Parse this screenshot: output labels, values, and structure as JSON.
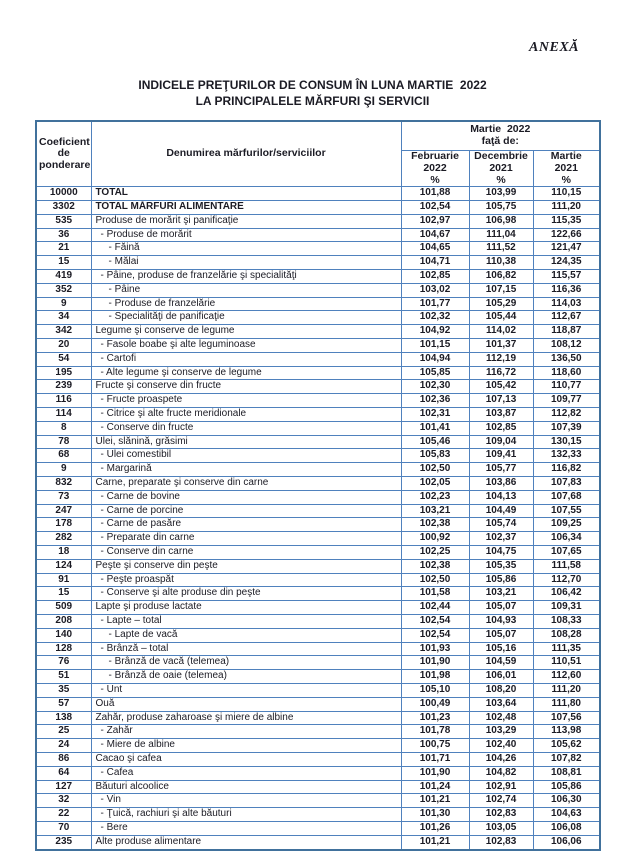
{
  "colors": {
    "table_border_inner": "#4f81bd",
    "table_border_outer": "#41719c",
    "text": "#1b1b24",
    "background": "#ffffff"
  },
  "page": {
    "annex_label": "ANEXĂ",
    "title_line1": "INDICELE PREŢURILOR DE CONSUM ÎN LUNA MARTIE  2022",
    "title_line2": "LA PRINCIPALELE MĂRFURI ŞI SERVICII"
  },
  "table": {
    "headers": {
      "coefficient": {
        "l1": "Coeficient",
        "l2": "de",
        "l3": "ponderare"
      },
      "name": "Denumirea mărfurilor/serviciilor",
      "group": {
        "l1": "Martie  2022",
        "l2": "faţă de:"
      },
      "sub": [
        {
          "l1": "Februarie",
          "l2": "2022",
          "percent": "%"
        },
        {
          "l1": "Decembrie",
          "l2": "2021",
          "percent": "%"
        },
        {
          "l1": "Martie",
          "l2": "2021",
          "percent": "%"
        }
      ]
    },
    "rows": [
      {
        "coef": "10000",
        "name": "TOTAL",
        "level": 0,
        "bold": true,
        "values": [
          "101,88",
          "103,99",
          "110,15"
        ]
      },
      {
        "coef": "3302",
        "name": "TOTAL MĂRFURI ALIMENTARE",
        "level": 0,
        "bold": true,
        "values": [
          "102,54",
          "105,75",
          "111,20"
        ]
      },
      {
        "coef": "535",
        "name": "Produse de morărit şi panificaţie",
        "level": 0,
        "bold": false,
        "values": [
          "102,97",
          "106,98",
          "115,35"
        ]
      },
      {
        "coef": "36",
        "name": "- Produse de morărit",
        "level": 1,
        "bold": false,
        "values": [
          "104,67",
          "111,04",
          "122,66"
        ]
      },
      {
        "coef": "21",
        "name": "- Făină",
        "level": 2,
        "bold": false,
        "values": [
          "104,65",
          "111,52",
          "121,47"
        ]
      },
      {
        "coef": "15",
        "name": "- Mălai",
        "level": 2,
        "bold": false,
        "values": [
          "104,71",
          "110,38",
          "124,35"
        ]
      },
      {
        "coef": "419",
        "name": "- Pâine, produse de franzelărie şi specialităţi",
        "level": 1,
        "bold": false,
        "values": [
          "102,85",
          "106,82",
          "115,57"
        ]
      },
      {
        "coef": "352",
        "name": "- Pâine",
        "level": 2,
        "bold": false,
        "values": [
          "103,02",
          "107,15",
          "116,36"
        ]
      },
      {
        "coef": "9",
        "name": "- Produse de franzelărie",
        "level": 2,
        "bold": false,
        "values": [
          "101,77",
          "105,29",
          "114,03"
        ]
      },
      {
        "coef": "34",
        "name": "- Specialităţi de panificaţie",
        "level": 2,
        "bold": false,
        "values": [
          "102,32",
          "105,44",
          "112,67"
        ]
      },
      {
        "coef": "342",
        "name": "Legume şi conserve de legume",
        "level": 0,
        "bold": false,
        "values": [
          "104,92",
          "114,02",
          "118,87"
        ]
      },
      {
        "coef": "20",
        "name": "- Fasole boabe şi alte leguminoase",
        "level": 1,
        "bold": false,
        "values": [
          "101,15",
          "101,37",
          "108,12"
        ]
      },
      {
        "coef": "54",
        "name": "- Cartofi",
        "level": 1,
        "bold": false,
        "values": [
          "104,94",
          "112,19",
          "136,50"
        ]
      },
      {
        "coef": "195",
        "name": "- Alte legume şi conserve de legume",
        "level": 1,
        "bold": false,
        "values": [
          "105,85",
          "116,72",
          "118,60"
        ]
      },
      {
        "coef": "239",
        "name": "Fructe şi conserve din fructe",
        "level": 0,
        "bold": false,
        "values": [
          "102,30",
          "105,42",
          "110,77"
        ]
      },
      {
        "coef": "116",
        "name": "- Fructe proaspete",
        "level": 1,
        "bold": false,
        "values": [
          "102,36",
          "107,13",
          "109,77"
        ]
      },
      {
        "coef": "114",
        "name": "- Citrice şi alte fructe meridionale",
        "level": 1,
        "bold": false,
        "values": [
          "102,31",
          "103,87",
          "112,82"
        ]
      },
      {
        "coef": "8",
        "name": "- Conserve din fructe",
        "level": 1,
        "bold": false,
        "values": [
          "101,41",
          "102,85",
          "107,39"
        ]
      },
      {
        "coef": "78",
        "name": "Ulei, slănină, grăsimi",
        "level": 0,
        "bold": false,
        "values": [
          "105,46",
          "109,04",
          "130,15"
        ]
      },
      {
        "coef": "68",
        "name": "- Ulei comestibil",
        "level": 1,
        "bold": false,
        "values": [
          "105,83",
          "109,41",
          "132,33"
        ]
      },
      {
        "coef": "9",
        "name": "- Margarină",
        "level": 1,
        "bold": false,
        "values": [
          "102,50",
          "105,77",
          "116,82"
        ]
      },
      {
        "coef": "832",
        "name": "Carne, preparate şi conserve din carne",
        "level": 0,
        "bold": false,
        "values": [
          "102,05",
          "103,86",
          "107,83"
        ]
      },
      {
        "coef": "73",
        "name": "- Carne de bovine",
        "level": 1,
        "bold": false,
        "values": [
          "102,23",
          "104,13",
          "107,68"
        ]
      },
      {
        "coef": "247",
        "name": "- Carne de porcine",
        "level": 1,
        "bold": false,
        "values": [
          "103,21",
          "104,49",
          "107,55"
        ]
      },
      {
        "coef": "178",
        "name": "- Carne de pasăre",
        "level": 1,
        "bold": false,
        "values": [
          "102,38",
          "105,74",
          "109,25"
        ]
      },
      {
        "coef": "282",
        "name": "- Preparate din carne",
        "level": 1,
        "bold": false,
        "values": [
          "100,92",
          "102,37",
          "106,34"
        ]
      },
      {
        "coef": "18",
        "name": "- Conserve din carne",
        "level": 1,
        "bold": false,
        "values": [
          "102,25",
          "104,75",
          "107,65"
        ]
      },
      {
        "coef": "124",
        "name": "Peşte şi conserve din peşte",
        "level": 0,
        "bold": false,
        "values": [
          "102,38",
          "105,35",
          "111,58"
        ]
      },
      {
        "coef": "91",
        "name": "- Peşte proaspăt",
        "level": 1,
        "bold": false,
        "values": [
          "102,50",
          "105,86",
          "112,70"
        ]
      },
      {
        "coef": "15",
        "name": "- Conserve şi alte produse din peşte",
        "level": 1,
        "bold": false,
        "values": [
          "101,58",
          "103,21",
          "106,42"
        ]
      },
      {
        "coef": "509",
        "name": "Lapte şi produse lactate",
        "level": 0,
        "bold": false,
        "values": [
          "102,44",
          "105,07",
          "109,31"
        ]
      },
      {
        "coef": "208",
        "name": "- Lapte – total",
        "level": 1,
        "bold": false,
        "values": [
          "102,54",
          "104,93",
          "108,33"
        ]
      },
      {
        "coef": "140",
        "name": "- Lapte de vacă",
        "level": 2,
        "bold": false,
        "values": [
          "102,54",
          "105,07",
          "108,28"
        ]
      },
      {
        "coef": "128",
        "name": "- Brânză – total",
        "level": 1,
        "bold": false,
        "values": [
          "101,93",
          "105,16",
          "111,35"
        ]
      },
      {
        "coef": "76",
        "name": "- Brânză de vacă (telemea)",
        "level": 2,
        "bold": false,
        "values": [
          "101,90",
          "104,59",
          "110,51"
        ]
      },
      {
        "coef": "51",
        "name": "- Brânză de oaie (telemea)",
        "level": 2,
        "bold": false,
        "values": [
          "101,98",
          "106,01",
          "112,60"
        ]
      },
      {
        "coef": "35",
        "name": "- Unt",
        "level": 1,
        "bold": false,
        "values": [
          "105,10",
          "108,20",
          "111,20"
        ]
      },
      {
        "coef": "57",
        "name": "Ouă",
        "level": 0,
        "bold": false,
        "values": [
          "100,49",
          "103,64",
          "111,80"
        ]
      },
      {
        "coef": "138",
        "name": "Zahăr, produse zaharoase şi miere de albine",
        "level": 0,
        "bold": false,
        "values": [
          "101,23",
          "102,48",
          "107,56"
        ]
      },
      {
        "coef": "25",
        "name": "- Zahăr",
        "level": 1,
        "bold": false,
        "values": [
          "101,78",
          "103,29",
          "113,98"
        ]
      },
      {
        "coef": "24",
        "name": "- Miere de albine",
        "level": 1,
        "bold": false,
        "values": [
          "100,75",
          "102,40",
          "105,62"
        ]
      },
      {
        "coef": "86",
        "name": "Cacao şi cafea",
        "level": 0,
        "bold": false,
        "values": [
          "101,71",
          "104,26",
          "107,82"
        ]
      },
      {
        "coef": "64",
        "name": "- Cafea",
        "level": 1,
        "bold": false,
        "values": [
          "101,90",
          "104,82",
          "108,81"
        ]
      },
      {
        "coef": "127",
        "name": "Băuturi alcoolice",
        "level": 0,
        "bold": false,
        "values": [
          "101,24",
          "102,91",
          "105,86"
        ]
      },
      {
        "coef": "32",
        "name": "- Vin",
        "level": 1,
        "bold": false,
        "values": [
          "101,21",
          "102,74",
          "106,30"
        ]
      },
      {
        "coef": "22",
        "name": "- Ţuică, rachiuri şi alte băuturi",
        "level": 1,
        "bold": false,
        "values": [
          "101,30",
          "102,83",
          "104,63"
        ]
      },
      {
        "coef": "70",
        "name": "- Bere",
        "level": 1,
        "bold": false,
        "values": [
          "101,26",
          "103,05",
          "106,08"
        ]
      },
      {
        "coef": "235",
        "name": "Alte produse alimentare",
        "level": 0,
        "bold": false,
        "values": [
          "101,21",
          "102,83",
          "106,06"
        ]
      }
    ]
  }
}
